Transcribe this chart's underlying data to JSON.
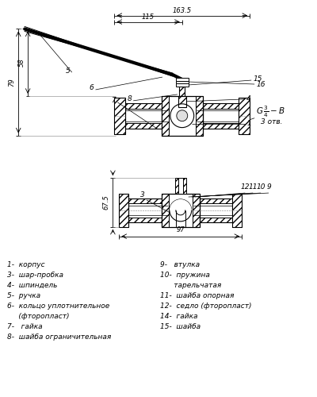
{
  "bg_color": "#ffffff",
  "line_color": "#000000",
  "legend_left": [
    "1-  корпус",
    "3-  шар-пробка",
    "4-  шпиндель",
    "5-  ручка",
    "6-  кольцо уплотнительное",
    "     (фторопласт)",
    "7-   гайка",
    "8-  шайба ограничительная"
  ],
  "legend_right": [
    "9-   втулка",
    "10-  пружина",
    "      тарельчатая",
    "11-  шайба опорная",
    "12-  седло (фторопласт)",
    "14-  гайка",
    "15-  шайба"
  ],
  "dim_1635": "163.5",
  "dim_115": "115",
  "dim_79": "79",
  "dim_58": "58",
  "dim_97": "97",
  "dim_675": "67.5",
  "thread_label1": "G 3/4 - B",
  "thread_label2": "3 отв.",
  "fs": 6.5
}
